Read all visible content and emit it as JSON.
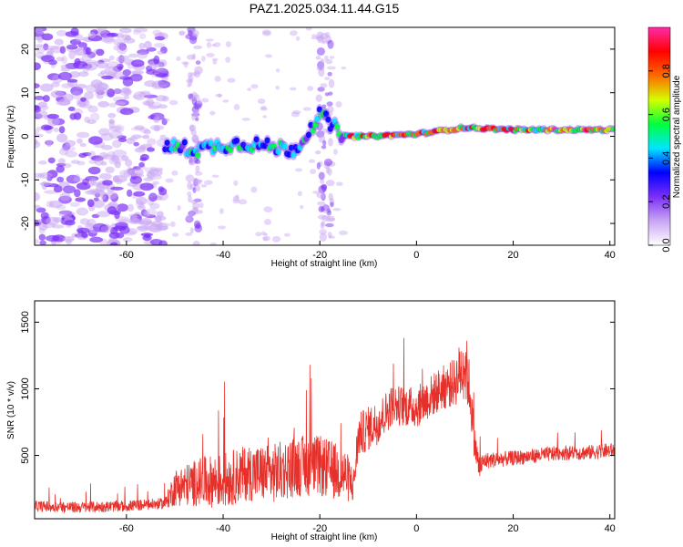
{
  "title": "PAZ1.2025.034.11.44.G15",
  "chart_data": [
    {
      "type": "heatmap",
      "panel": "top",
      "xlabel": "Height of straight line (km)",
      "ylabel": "Frequency (Hz)",
      "xlim": [
        -79,
        41
      ],
      "ylim": [
        -25,
        25
      ],
      "xticks": [
        -60,
        -40,
        -20,
        0,
        20,
        40
      ],
      "yticks": [
        -20,
        -10,
        0,
        10,
        20
      ],
      "colorbar": {
        "label": "Normalized spectral amplitude",
        "range": [
          0,
          1
        ],
        "ticks": [
          "0.0",
          "0.2",
          "0.4",
          "0.6",
          "0.8"
        ],
        "colormap": [
          "#ffffff",
          "#c9a6f3",
          "#7b2ff7",
          "#0000ff",
          "#00e5ff",
          "#00ff3c",
          "#d4ff00",
          "#ff6a00",
          "#ff0000",
          "#ff2aa8"
        ]
      },
      "ridge": [
        {
          "x": -50,
          "y": -2.5
        },
        {
          "x": -45,
          "y": -3
        },
        {
          "x": -40,
          "y": -2
        },
        {
          "x": -35,
          "y": -1.5
        },
        {
          "x": -30,
          "y": -2.5
        },
        {
          "x": -25,
          "y": -3
        },
        {
          "x": -20,
          "y": 5
        },
        {
          "x": -15,
          "y": 0
        },
        {
          "x": -10,
          "y": 0
        },
        {
          "x": 0,
          "y": 0.5
        },
        {
          "x": 10,
          "y": 2
        },
        {
          "x": 20,
          "y": 1.5
        },
        {
          "x": 30,
          "y": 1.5
        },
        {
          "x": 41,
          "y": 1.5
        }
      ]
    },
    {
      "type": "line",
      "panel": "bottom",
      "xlabel": "Height of straight line (km)",
      "ylabel": "SNR (10 * v/v)",
      "xlim": [
        -79,
        41
      ],
      "ylim": [
        25,
        1660
      ],
      "xticks": [
        -60,
        -40,
        -20,
        0,
        20,
        40
      ],
      "yticks": [
        500,
        1000,
        1500
      ],
      "color": "#e8302a",
      "x": [
        -79,
        -70,
        -60,
        -52,
        -50,
        -45,
        -40,
        -35,
        -30,
        -25,
        -20,
        -15,
        -13,
        -12,
        -8,
        -5,
        0,
        5,
        8,
        10,
        11,
        12,
        13,
        14,
        20,
        25,
        30,
        35,
        41
      ],
      "y": [
        120,
        110,
        120,
        140,
        260,
        300,
        310,
        370,
        360,
        420,
        420,
        360,
        280,
        650,
        750,
        880,
        860,
        1000,
        1050,
        1200,
        1000,
        600,
        400,
        460,
        480,
        500,
        520,
        520,
        540
      ],
      "noise": [
        60,
        60,
        60,
        60,
        200,
        260,
        300,
        300,
        320,
        330,
        330,
        300,
        200,
        240,
        240,
        220,
        220,
        240,
        260,
        400,
        300,
        200,
        150,
        90,
        80,
        80,
        80,
        80,
        80
      ]
    }
  ]
}
